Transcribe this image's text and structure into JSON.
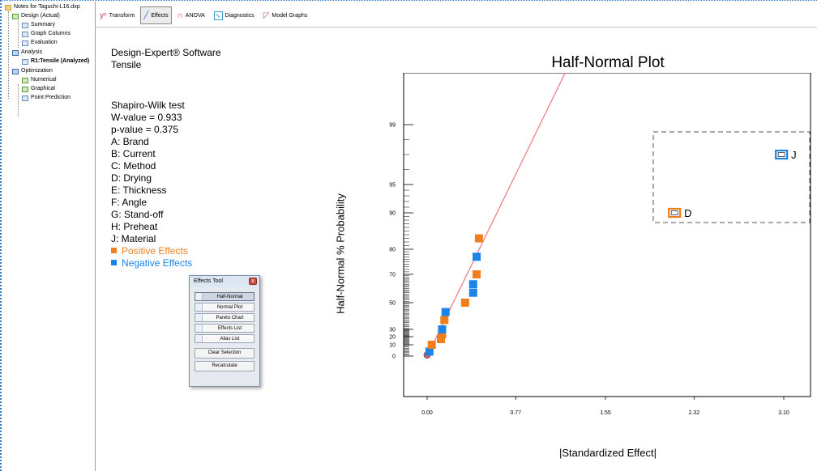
{
  "tree": {
    "items": [
      {
        "label": "Notes for Taguchi-L16.dxp",
        "icon": "folder-icon"
      },
      {
        "label": "Design (Actual)",
        "icon": "grid-icon"
      },
      {
        "label": "Summary",
        "icon": "document-icon"
      },
      {
        "label": "Graph Columns",
        "icon": "graph-icon"
      },
      {
        "label": "Evaluation",
        "icon": "evaluation-icon"
      },
      {
        "label": "Analysis",
        "icon": "analysis-icon"
      },
      {
        "label": "R1:Tensile (Analyzed)",
        "icon": "response-icon"
      },
      {
        "label": "Optimization",
        "icon": "optimization-icon"
      },
      {
        "label": "Numerical",
        "icon": "numerical-icon"
      },
      {
        "label": "Graphical",
        "icon": "graphical-icon"
      },
      {
        "label": "Point Prediction",
        "icon": "prediction-icon"
      }
    ]
  },
  "toolbar": {
    "buttons": [
      {
        "label": "Transform",
        "icon": "transform-icon"
      },
      {
        "label": "Effects",
        "icon": "effects-icon"
      },
      {
        "label": "ANOVA",
        "icon": "anova-icon"
      },
      {
        "label": "Diagnostics",
        "icon": "diagnostics-icon"
      },
      {
        "label": "Model Graphs",
        "icon": "model-graphs-icon"
      }
    ]
  },
  "info": {
    "software": "Design-Expert® Software",
    "response": "Tensile",
    "test": "Shapiro-Wilk test",
    "w_value": "W-value = 0.933",
    "p_value": "p-value = 0.375",
    "factors": [
      "A: Brand",
      "B: Current",
      "C: Method",
      "D: Drying",
      "E: Thickness",
      "F: Angle",
      "G: Stand-off",
      "H: Preheat",
      "J: Material"
    ],
    "positive_label": "Positive Effects",
    "negative_label": "Negative Effects"
  },
  "effects_tool": {
    "title": "Effects Tool",
    "close": "x",
    "buttons": [
      "Half-Normal",
      "Normal Plot",
      "Pareto Chart",
      "Effects List",
      "Alias List"
    ],
    "clear": "Clear Selection",
    "recalculate": "Recalculate"
  },
  "colors": {
    "positive": "#f07e1c",
    "negative": "#1b84e8",
    "fit_line": "#f07f86"
  },
  "chart_data": {
    "type": "scatter",
    "title": "Half-Normal Plot",
    "xlabel": "|Standardized Effect|",
    "ylabel": "Half-Normal % Probability",
    "xticks": [
      "0.00",
      "0.77",
      "1.55",
      "2.32",
      "3.10"
    ],
    "xlim": [
      0.0,
      3.1
    ],
    "yticks": [
      "0",
      "10",
      "20",
      "30",
      "50",
      "70",
      "80",
      "90",
      "95",
      "99"
    ],
    "line": {
      "x": [
        0.0,
        1.2
      ],
      "y": [
        0,
        99.9
      ]
    },
    "points": [
      {
        "x": 0.0,
        "y": 1,
        "kind": "zero"
      },
      {
        "x": 0.02,
        "y": 4,
        "kind": "negative"
      },
      {
        "x": 0.04,
        "y": 10,
        "kind": "positive"
      },
      {
        "x": 0.12,
        "y": 17,
        "kind": "positive"
      },
      {
        "x": 0.13,
        "y": 23,
        "kind": "positive"
      },
      {
        "x": 0.13,
        "y": 30,
        "kind": "negative"
      },
      {
        "x": 0.15,
        "y": 37,
        "kind": "positive"
      },
      {
        "x": 0.16,
        "y": 43,
        "kind": "negative"
      },
      {
        "x": 0.33,
        "y": 50,
        "kind": "positive"
      },
      {
        "x": 0.4,
        "y": 57,
        "kind": "negative"
      },
      {
        "x": 0.4,
        "y": 63,
        "kind": "negative"
      },
      {
        "x": 0.43,
        "y": 70,
        "kind": "positive"
      },
      {
        "x": 0.43,
        "y": 77,
        "kind": "negative"
      },
      {
        "x": 0.45,
        "y": 83,
        "kind": "positive"
      },
      {
        "x": 2.15,
        "y": 90,
        "kind": "positive",
        "label": "D"
      },
      {
        "x": 3.08,
        "y": 97,
        "kind": "negative",
        "label": "J"
      }
    ]
  }
}
